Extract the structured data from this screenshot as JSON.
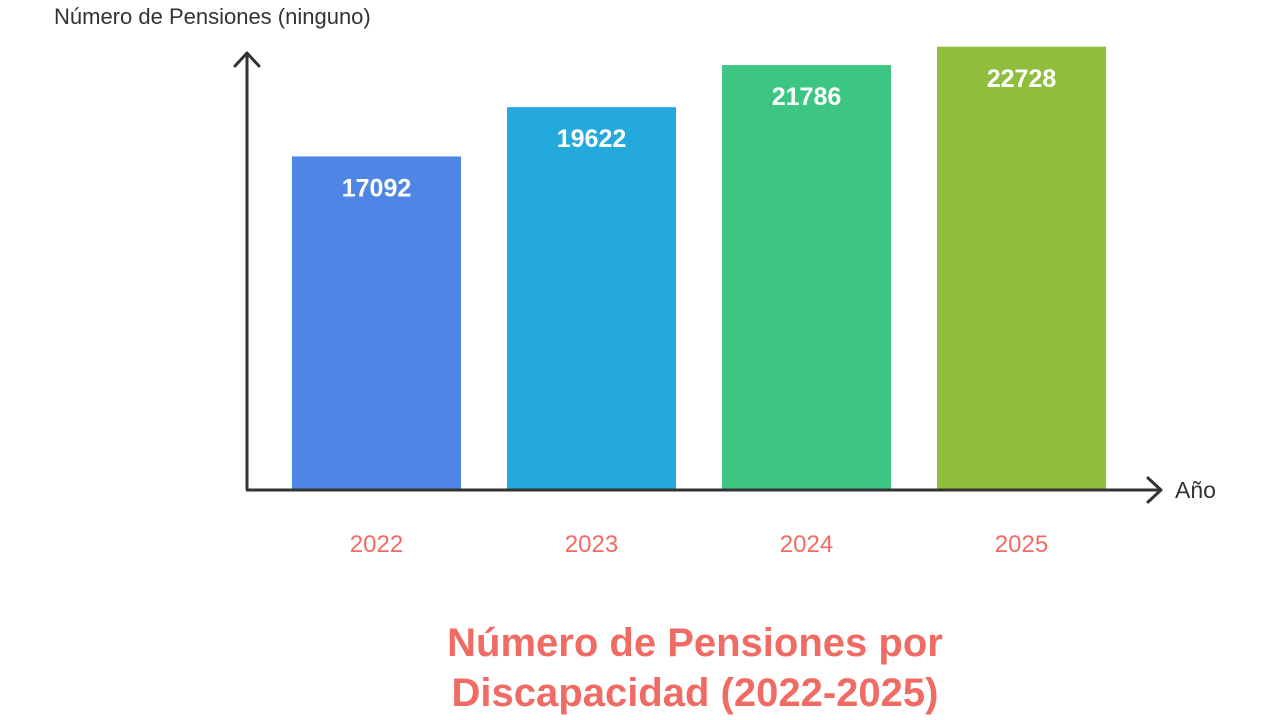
{
  "chart_data": {
    "type": "bar",
    "title": "Número de Pensiones por\nDiscapacidad (2022-2025)",
    "ylabel": "Número de Pensiones (ninguno)",
    "xlabel": "Año",
    "categories": [
      "2022",
      "2023",
      "2024",
      "2025"
    ],
    "values": [
      17092,
      19622,
      21786,
      22728
    ],
    "ylim": [
      0,
      24000
    ],
    "grid": false,
    "legend": "none",
    "data_labels": "inside-top",
    "colors": {
      "bars": [
        "#4F86E6",
        "#23A9DB",
        "#3CC583",
        "#8FBE3C"
      ],
      "category_labels": "#F06B63",
      "title": "#F06B63",
      "axis": "#333333",
      "data_label_text": "#ffffff"
    }
  }
}
